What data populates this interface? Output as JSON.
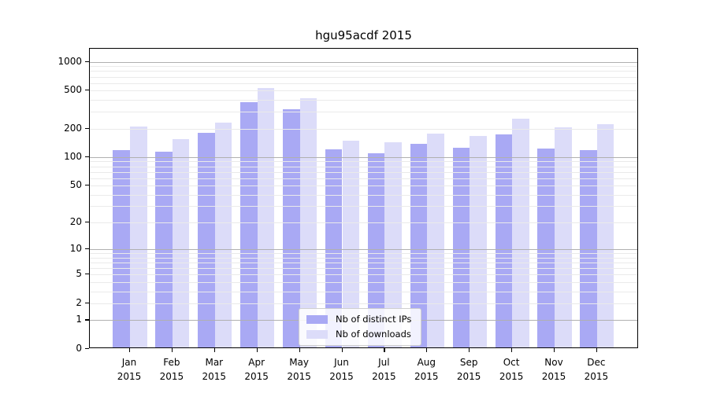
{
  "chart_data": {
    "type": "bar",
    "title": "hgu95acdf 2015",
    "year_label": "2015",
    "months": [
      "Jan",
      "Feb",
      "Mar",
      "Apr",
      "May",
      "Jun",
      "Jul",
      "Aug",
      "Sep",
      "Oct",
      "Nov",
      "Dec"
    ],
    "categories": [
      "Jan 2015",
      "Feb 2015",
      "Mar 2015",
      "Apr 2015",
      "May 2015",
      "Jun 2015",
      "Jul 2015",
      "Aug 2015",
      "Sep 2015",
      "Oct 2015",
      "Nov 2015",
      "Dec 2015"
    ],
    "series": [
      {
        "name": "Nb of distinct IPs",
        "color": "#a9a9f4",
        "values": [
          115,
          110,
          172,
          363,
          306,
          117,
          106,
          133,
          122,
          166,
          119,
          115
        ]
      },
      {
        "name": "Nb of downloads",
        "color": "#dcdcf9",
        "values": [
          201,
          148,
          222,
          509,
          400,
          143,
          139,
          170,
          160,
          244,
          200,
          216
        ]
      }
    ],
    "yscale": "log1p",
    "ylim": [
      0,
      1370
    ],
    "yticks": [
      0,
      1,
      2,
      5,
      10,
      20,
      50,
      100,
      200,
      500,
      1000
    ],
    "xlabel": "",
    "ylabel": "",
    "grid": {
      "major_values": [
        1,
        10,
        100,
        1000
      ],
      "major_color": "#b0b0b0",
      "minor_color": "#eaeaea"
    },
    "legend": {
      "position": "lower center"
    }
  }
}
